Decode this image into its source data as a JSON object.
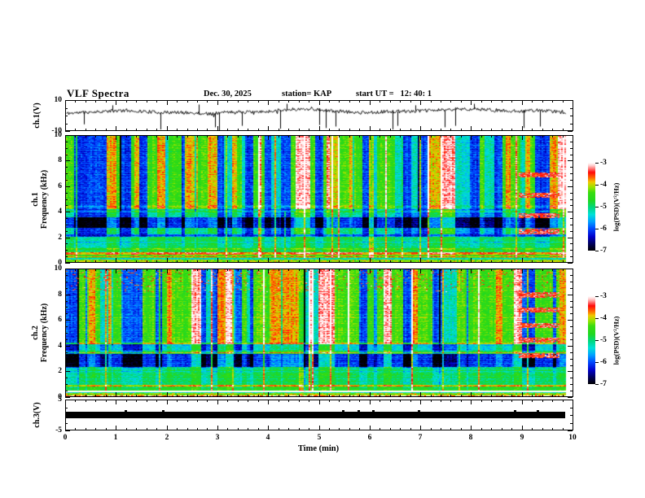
{
  "title": "VLF Spectra",
  "header": {
    "date": "Dec. 30, 2025",
    "station": "station= KAP",
    "start_ut": "start UT =   12: 40: 1"
  },
  "xaxis": {
    "label": "Time (min)",
    "min": 0,
    "max": 10,
    "major_ticks": [
      0,
      1,
      2,
      3,
      4,
      5,
      6,
      7,
      8,
      9,
      10
    ],
    "minor_step": 0.2,
    "data_end_min": 9.85
  },
  "panels": {
    "wave1": {
      "ylabel": "ch.1(V)",
      "ymin": -10,
      "ymax": 10,
      "major_yticks": [
        10,
        -10
      ],
      "minor_yticks": [
        5,
        0,
        -5
      ]
    },
    "spec1": {
      "ylabel1": "ch.1",
      "ylabel2": "Frequency (kHz)",
      "ymin": 0,
      "ymax": 10,
      "major_yticks": [
        0,
        2,
        4,
        6,
        8,
        10
      ],
      "minor_ystep": 0.5
    },
    "spec2": {
      "ylabel1": "ch.2",
      "ylabel2": "Frequency (kHz)",
      "ymin": 0,
      "ymax": 10,
      "major_yticks": [
        0,
        2,
        4,
        6,
        8,
        10
      ],
      "minor_ystep": 0.5
    },
    "wave3": {
      "ylabel": "ch.3(V)",
      "ymin": -5,
      "ymax": 5,
      "major_yticks": [
        5,
        -5
      ],
      "minor_yticks": [
        2.5,
        0,
        -2.5
      ]
    }
  },
  "colorbars": [
    {
      "label": "log(PSD)(V²/Hz)",
      "tick_values": [
        -3,
        -4,
        -5,
        -6,
        -7
      ],
      "vmin": -7,
      "vmax": -3
    },
    {
      "label": "log(PSD)(V²/Hz)",
      "tick_values": [
        -3,
        -4,
        -5,
        -6,
        -7
      ],
      "vmin": -7,
      "vmax": -3
    }
  ],
  "colormap": [
    {
      "t": 0.0,
      "c": "#000000"
    },
    {
      "t": 0.07,
      "c": "#000050"
    },
    {
      "t": 0.16,
      "c": "#0000cc"
    },
    {
      "t": 0.25,
      "c": "#0048ff"
    },
    {
      "t": 0.33,
      "c": "#00a0ff"
    },
    {
      "t": 0.41,
      "c": "#00e0d8"
    },
    {
      "t": 0.49,
      "c": "#00d880"
    },
    {
      "t": 0.57,
      "c": "#20d820"
    },
    {
      "t": 0.66,
      "c": "#38dc10"
    },
    {
      "t": 0.72,
      "c": "#96e400"
    },
    {
      "t": 0.78,
      "c": "#f0c800"
    },
    {
      "t": 0.83,
      "c": "#ff6400"
    },
    {
      "t": 0.89,
      "c": "#ff0a0a"
    },
    {
      "t": 0.94,
      "c": "#ff8c8c"
    },
    {
      "t": 0.97,
      "c": "#ffd2d2"
    },
    {
      "t": 1.0,
      "c": "#ffffff"
    }
  ],
  "chart_data": [
    {
      "panel": "ch1_waveform",
      "type": "line",
      "ylabel": "ch.1(V)",
      "ylim": [
        -10,
        10
      ],
      "x_unit": "min",
      "x_range": [
        0,
        9.85
      ],
      "seed": 11,
      "noise_amp": 1.15,
      "envelope": [
        [
          0,
          1.5
        ],
        [
          0.5,
          2.5
        ],
        [
          1.2,
          3.5
        ],
        [
          1.8,
          2.2
        ],
        [
          2.3,
          2.0
        ],
        [
          2.8,
          1.2
        ],
        [
          3.3,
          2.6
        ],
        [
          3.8,
          2.2
        ],
        [
          4.3,
          4.0
        ],
        [
          4.8,
          4.5
        ],
        [
          5.3,
          3.0
        ],
        [
          5.8,
          2.0
        ],
        [
          6.3,
          2.6
        ],
        [
          6.8,
          3.0
        ],
        [
          7.3,
          3.6
        ],
        [
          7.8,
          4.6
        ],
        [
          8.3,
          4.0
        ],
        [
          8.8,
          3.0
        ],
        [
          9.3,
          3.6
        ],
        [
          9.85,
          2.0
        ]
      ],
      "spikes_down": [
        [
          0.35,
          -6
        ],
        [
          1.87,
          -9.5
        ],
        [
          2.94,
          -8
        ],
        [
          3.03,
          -10
        ],
        [
          3.48,
          -7
        ],
        [
          4.23,
          -9
        ],
        [
          5.0,
          -6.5
        ],
        [
          5.13,
          -8.5
        ],
        [
          5.32,
          -7.5
        ],
        [
          6.45,
          -9.5
        ],
        [
          6.55,
          -7
        ],
        [
          7.47,
          -8
        ],
        [
          7.68,
          -7
        ],
        [
          9.03,
          -8.5
        ],
        [
          9.35,
          -7.5
        ]
      ],
      "spikes_up": [
        [
          0.92,
          7
        ],
        [
          2.62,
          7.5
        ],
        [
          4.35,
          8
        ],
        [
          6.9,
          7
        ],
        [
          8.06,
          8
        ]
      ]
    },
    {
      "panel": "ch1_spectrogram",
      "type": "heatmap",
      "ylim": [
        0,
        10
      ],
      "value_range": [
        -7,
        -3
      ],
      "x_range": [
        0,
        9.85
      ],
      "seed": 42,
      "bands": [
        [
          0.0,
          0.3,
          -4.2
        ],
        [
          0.3,
          0.55,
          -4.35
        ],
        [
          0.55,
          0.78,
          -4.55
        ],
        [
          0.78,
          1.1,
          -4.75
        ],
        [
          1.1,
          1.95,
          -4.95
        ],
        [
          1.95,
          2.2,
          -5.75
        ],
        [
          2.2,
          2.7,
          -5.35
        ],
        [
          2.7,
          3.55,
          -6.25
        ],
        [
          3.55,
          4.2,
          -5.35
        ],
        [
          4.2,
          10.01,
          -4.7
        ]
      ],
      "lines": [
        [
          0.4,
          0.05,
          0.55
        ],
        [
          0.65,
          0.07,
          1.05
        ],
        [
          1.0,
          0.05,
          0.4
        ],
        [
          1.55,
          0.04,
          -0.45
        ],
        [
          2.1,
          0.05,
          -0.35
        ],
        [
          4.0,
          0.06,
          0.5
        ],
        [
          4.4,
          0.05,
          0.35
        ],
        [
          5.6,
          0.04,
          0.25
        ]
      ],
      "column_mod": {
        "states": [
          -1.35,
          -0.6,
          0.25,
          0.85,
          1.5
        ],
        "weights": [
          0.28,
          0.16,
          0.31,
          0.17,
          0.08
        ],
        "min_run": 2,
        "max_run": 6
      },
      "impulse_prob": 0.055,
      "impulse_amp": [
        1.0,
        1.6
      ],
      "bottom_stripe_fmax": 0.3,
      "feature_rows": {
        "t0": 8.92,
        "t1": 9.74,
        "rows": [
          2.4,
          3.65,
          5.3,
          6.9
        ],
        "half_width": 0.2,
        "value": -3.4
      }
    },
    {
      "panel": "ch2_spectrogram",
      "type": "heatmap",
      "ylim": [
        0,
        10
      ],
      "value_range": [
        -7,
        -3
      ],
      "x_range": [
        0,
        9.85
      ],
      "seed": 77,
      "bands": [
        [
          0.0,
          0.28,
          -4.1
        ],
        [
          0.28,
          0.45,
          -3.55
        ],
        [
          0.45,
          0.75,
          -4.65
        ],
        [
          0.75,
          0.88,
          -4.35
        ],
        [
          0.88,
          1.4,
          -5.0
        ],
        [
          1.4,
          2.1,
          -4.9
        ],
        [
          2.1,
          2.3,
          -5.15
        ],
        [
          2.3,
          3.35,
          -6.25
        ],
        [
          3.35,
          3.55,
          -4.95
        ],
        [
          3.55,
          4.1,
          -5.55
        ],
        [
          4.1,
          10.01,
          -4.65
        ]
      ],
      "lines": [
        [
          0.35,
          0.06,
          1.25
        ],
        [
          0.8,
          0.05,
          0.5
        ],
        [
          1.9,
          0.04,
          -0.35
        ],
        [
          3.42,
          0.06,
          0.75
        ],
        [
          4.15,
          0.05,
          0.6
        ],
        [
          6.2,
          0.04,
          0.25
        ]
      ],
      "column_mod": {
        "states": [
          -1.35,
          -0.6,
          0.25,
          0.85,
          1.5
        ],
        "weights": [
          0.28,
          0.16,
          0.31,
          0.17,
          0.08
        ],
        "min_run": 2,
        "max_run": 6
      },
      "impulse_prob": 0.07,
      "impulse_amp": [
        1.1,
        1.8
      ],
      "top_red": {
        "fmin": 8.2,
        "extra_prob": 0.06
      },
      "bottom_stripe_fmax": 0.28,
      "feature_rows": {
        "t0": 8.92,
        "t1": 9.74,
        "rows": [
          3.2,
          4.4,
          5.6,
          6.8,
          8.0
        ],
        "half_width": 0.2,
        "value": -3.4
      }
    },
    {
      "panel": "ch3_waveform",
      "type": "area",
      "ylabel": "ch.3(V)",
      "ylim": [
        -5,
        5
      ],
      "band": [
        -1.2,
        1.2
      ],
      "t_range": [
        0,
        9.85
      ],
      "color": "#000000",
      "bumps": [
        1.15,
        1.9,
        5.45,
        5.75,
        6.05,
        6.95,
        8.85,
        9.3
      ]
    }
  ]
}
